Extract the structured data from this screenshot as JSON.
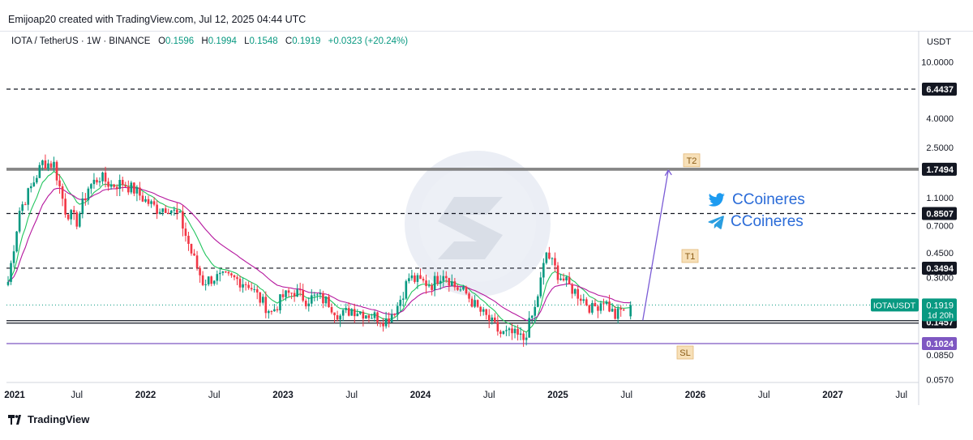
{
  "header": {
    "created_by": "Emijoap20 created with TradingView.com, Jul 12, 2025 04:44 UTC"
  },
  "symbol": {
    "pair": "IOTA / TetherUS · 1W · BINANCE",
    "open_label": "O",
    "open": "0.1596",
    "high_label": "H",
    "high": "0.1994",
    "low_label": "L",
    "low": "0.1548",
    "close_label": "C",
    "close": "0.1919",
    "change": "+0.0323 (+20.24%)"
  },
  "watermark": {
    "twitter_handle": "CCoineres",
    "telegram_handle": "CCoineres",
    "twitter_icon": "twitter-bird-icon",
    "telegram_icon": "telegram-plane-icon"
  },
  "footer": {
    "brand": "TradingView",
    "logo_icon": "tradingview-logo-icon"
  },
  "colors": {
    "up": "#089981",
    "down": "#f23645",
    "ema_fast": "#22c55e",
    "ema_slow": "#b5179e",
    "projection": "#7b5cd6",
    "sl_line": "#7e57c2",
    "label_bg": "#131722",
    "target_box": "#f7e0b8"
  },
  "chart_data": {
    "type": "candlestick",
    "scale": "log",
    "timeframe": "1W",
    "currency": "USDT",
    "x_ticks": [
      "2021",
      "Jul",
      "2022",
      "Jul",
      "2023",
      "Jul",
      "2024",
      "Jul",
      "2025",
      "Jul",
      "2026",
      "Jul",
      "2027",
      "Jul"
    ],
    "y_ticks": [
      "10.0000",
      "4.0000",
      "2.5000",
      "1.1000",
      "0.7000",
      "0.4500",
      "0.3000",
      "0.0850",
      "0.0570"
    ],
    "levels": [
      {
        "value": 6.4437,
        "label": "6.4437",
        "style": "dashed"
      },
      {
        "value": 1.7494,
        "label": "1.7494",
        "style": "solid-thick",
        "tag": "T2"
      },
      {
        "value": 0.8507,
        "label": "0.8507",
        "style": "dashed"
      },
      {
        "value": 0.3494,
        "label": "0.3494",
        "style": "dashed",
        "tag": "T1"
      },
      {
        "value": 0.1457,
        "label": "0.1457",
        "style": "solid-double"
      },
      {
        "value": 0.1024,
        "label": "0.1024",
        "style": "solid-purple",
        "tag": "SL"
      }
    ],
    "last_price": {
      "symbol": "IOTAUSDT",
      "value": "0.1919",
      "countdown": "1d 20h"
    },
    "monthly_path": [
      [
        "2021-01",
        0.28
      ],
      [
        "2021-02",
        0.9
      ],
      [
        "2021-03",
        1.3
      ],
      [
        "2021-04",
        1.95
      ],
      [
        "2021-05",
        1.9
      ],
      [
        "2021-06",
        0.9
      ],
      [
        "2021-07",
        0.75
      ],
      [
        "2021-08",
        1.3
      ],
      [
        "2021-09",
        1.55
      ],
      [
        "2021-10",
        1.35
      ],
      [
        "2021-11",
        1.4
      ],
      [
        "2021-12",
        1.25
      ],
      [
        "2022-01",
        1.05
      ],
      [
        "2022-02",
        0.92
      ],
      [
        "2022-03",
        0.95
      ],
      [
        "2022-04",
        0.8
      ],
      [
        "2022-05",
        0.45
      ],
      [
        "2022-06",
        0.28
      ],
      [
        "2022-07",
        0.3
      ],
      [
        "2022-08",
        0.3
      ],
      [
        "2022-09",
        0.29
      ],
      [
        "2022-10",
        0.27
      ],
      [
        "2022-11",
        0.21
      ],
      [
        "2022-12",
        0.17
      ],
      [
        "2023-01",
        0.22
      ],
      [
        "2023-02",
        0.24
      ],
      [
        "2023-03",
        0.21
      ],
      [
        "2023-04",
        0.22
      ],
      [
        "2023-05",
        0.2
      ],
      [
        "2023-06",
        0.16
      ],
      [
        "2023-07",
        0.18
      ],
      [
        "2023-08",
        0.17
      ],
      [
        "2023-09",
        0.16
      ],
      [
        "2023-10",
        0.15
      ],
      [
        "2023-11",
        0.19
      ],
      [
        "2023-12",
        0.3
      ],
      [
        "2024-01",
        0.28
      ],
      [
        "2024-02",
        0.27
      ],
      [
        "2024-03",
        0.33
      ],
      [
        "2024-04",
        0.26
      ],
      [
        "2024-05",
        0.23
      ],
      [
        "2024-06",
        0.18
      ],
      [
        "2024-07",
        0.15
      ],
      [
        "2024-08",
        0.12
      ],
      [
        "2024-09",
        0.12
      ],
      [
        "2024-10",
        0.11
      ],
      [
        "2024-11",
        0.18
      ],
      [
        "2024-12",
        0.45
      ],
      [
        "2025-01",
        0.32
      ],
      [
        "2025-02",
        0.26
      ],
      [
        "2025-03",
        0.22
      ],
      [
        "2025-04",
        0.18
      ],
      [
        "2025-05",
        0.21
      ],
      [
        "2025-06",
        0.16
      ],
      [
        "2025-07",
        0.19
      ]
    ],
    "projection": {
      "from": [
        "2025-07",
        0.1457
      ],
      "to": [
        "2025-11",
        1.7494
      ]
    }
  }
}
